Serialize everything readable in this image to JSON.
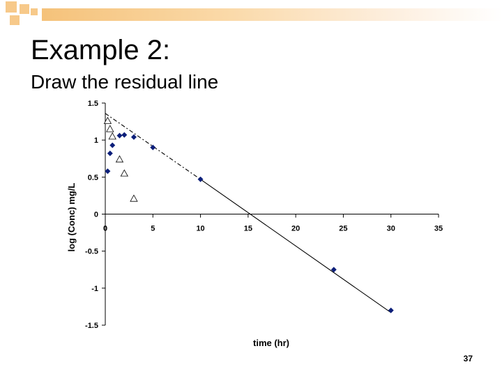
{
  "slide": {
    "title": "Example 2:",
    "subtitle": "Draw the residual line",
    "page_number": "37"
  },
  "colors": {
    "accent": "#f7c98a",
    "marker": "#0c1f7a",
    "line": "#000000"
  },
  "chart_data": {
    "type": "scatter",
    "xlabel": "time (hr)",
    "ylabel": "log (Conc)  mg/L",
    "xlim": [
      0,
      35
    ],
    "ylim": [
      -1.5,
      1.5
    ],
    "xticks": [
      0,
      5,
      10,
      15,
      20,
      25,
      30,
      35
    ],
    "yticks": [
      -1.5,
      -1,
      -0.5,
      0,
      0.5,
      1,
      1.5
    ],
    "ytick_labels": [
      "-1.5",
      "-1",
      "-0.5",
      "0",
      "0.5",
      "1",
      "1.5"
    ],
    "xtick_labels": [
      "0",
      "5",
      "10",
      "15",
      "20",
      "25",
      "30",
      "35"
    ],
    "series": [
      {
        "marker": "diamond",
        "x": [
          0.25,
          0.5,
          0.75,
          1.5,
          2,
          3,
          5,
          10,
          24,
          30
        ],
        "y": [
          0.58,
          0.82,
          0.93,
          1.06,
          1.07,
          1.04,
          0.9,
          0.47,
          -0.75,
          -1.3
        ]
      },
      {
        "marker": "triangle-open",
        "x": [
          0.25,
          0.5,
          0.75,
          1.5,
          2,
          3
        ],
        "y": [
          1.26,
          1.15,
          1.05,
          0.74,
          0.55,
          0.21
        ]
      }
    ],
    "lines": [
      {
        "style": "dashed",
        "x": [
          0,
          10
        ],
        "y": [
          1.36,
          0.47
        ]
      },
      {
        "style": "solid",
        "x": [
          10,
          30
        ],
        "y": [
          0.47,
          -1.33
        ]
      }
    ]
  }
}
